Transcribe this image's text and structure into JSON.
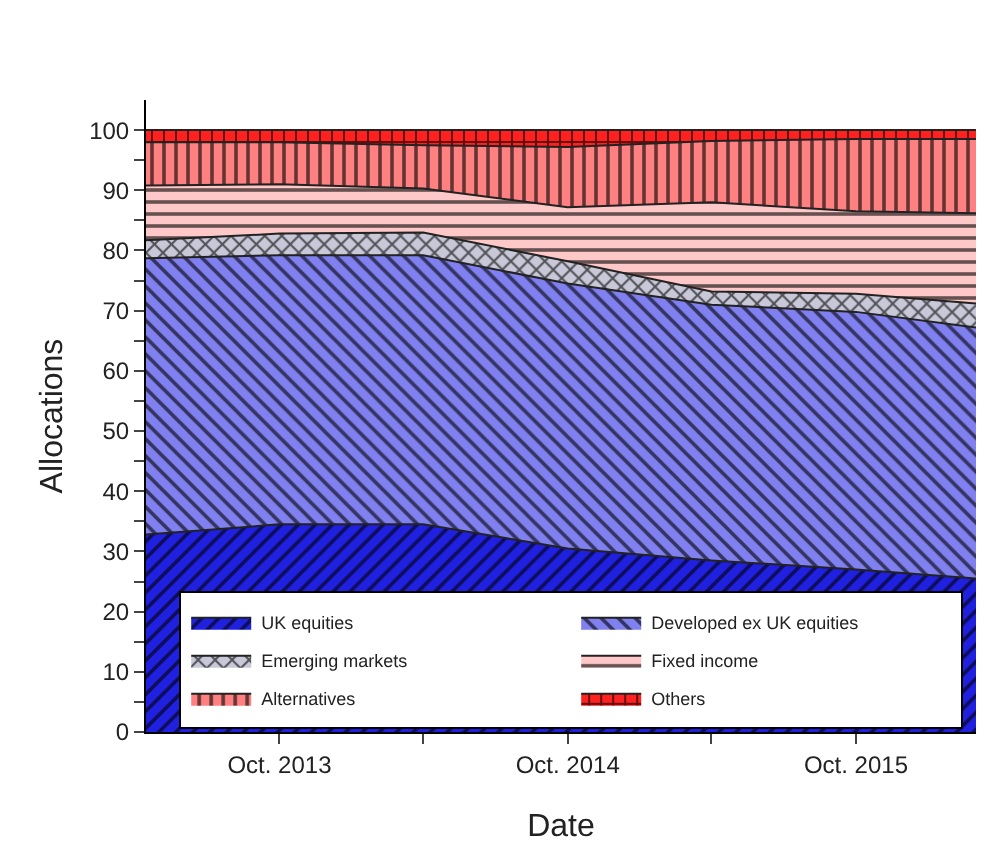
{
  "chart_data": {
    "type": "area",
    "stacked": true,
    "xlabel": "Date",
    "ylabel": "Allocations",
    "x": [
      "2013-04-15",
      "2013-10-01",
      "2014-04-01",
      "2014-10-01",
      "2015-04-01",
      "2015-10-01",
      "2016-03-01"
    ],
    "series": [
      {
        "name": "UK equities",
        "color": "#2020e0",
        "values": [
          32.8,
          34.5,
          34.5,
          30.5,
          28.5,
          27,
          25.5
        ]
      },
      {
        "name": "Developed ex UK equities",
        "color": "#8080f0",
        "values": [
          45.9,
          44.7,
          44.7,
          44,
          42.5,
          42.8,
          41.7
        ]
      },
      {
        "name": "Emerging markets",
        "color": "#c8c8d8",
        "values": [
          3,
          3.6,
          3.8,
          3.7,
          2.2,
          3,
          4
        ]
      },
      {
        "name": "Fixed income",
        "color": "#ffc8c8",
        "values": [
          9.1,
          8.2,
          7.3,
          9,
          14.8,
          13.7,
          15
        ]
      },
      {
        "name": "Alternatives",
        "color": "#ff8080",
        "values": [
          7.2,
          7,
          7.2,
          10,
          10.2,
          12,
          12.3
        ]
      },
      {
        "name": "Others",
        "color": "#ff2020",
        "values": [
          2,
          2,
          2.5,
          2.8,
          1.8,
          1.5,
          1.5
        ]
      }
    ],
    "xlim": [
      "2013-04-15",
      "2016-03-01"
    ],
    "xticks": [
      {
        "value": "2013-10-01",
        "label": "Oct. 2013"
      },
      {
        "value": "2014-04-01",
        "label": null
      },
      {
        "value": "2014-10-01",
        "label": "Oct. 2014"
      },
      {
        "value": "2015-04-01",
        "label": null
      },
      {
        "value": "2015-10-01",
        "label": "Oct. 2015"
      }
    ],
    "ylim": [
      0,
      105
    ],
    "yticks": [
      0,
      {
        "value": 5,
        "label": null
      },
      10,
      {
        "value": 15,
        "label": null
      },
      20,
      {
        "value": 25,
        "label": null
      },
      30,
      {
        "value": 35,
        "label": null
      },
      40,
      {
        "value": 45,
        "label": null
      },
      50,
      {
        "value": 55,
        "label": null
      },
      60,
      {
        "value": 65,
        "label": null
      },
      70,
      {
        "value": 75,
        "label": null
      },
      80,
      {
        "value": 85,
        "label": null
      },
      90,
      {
        "value": 95,
        "label": null
      },
      100
    ],
    "grid": false,
    "legend": "bottom left",
    "line_style": "solid",
    "marker": "none"
  }
}
